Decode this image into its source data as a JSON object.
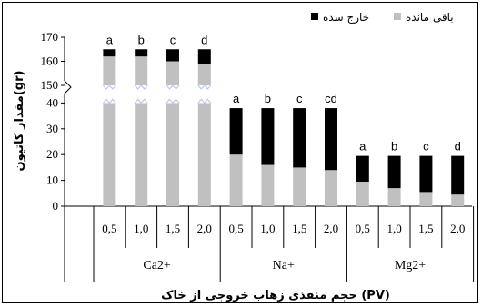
{
  "chart_data": {
    "type": "bar",
    "stacked": true,
    "broken_axis": {
      "break_from": 40,
      "break_to": 150
    },
    "groups": [
      "Ca2+",
      "Na+",
      "Mg2+"
    ],
    "categories": [
      "0,5",
      "1,0",
      "1,5",
      "2,0"
    ],
    "series": [
      {
        "name": "باقی مانده",
        "color": "#c0c0c0",
        "values": [
          [
            162,
            162,
            160,
            159
          ],
          [
            20,
            16,
            15,
            14
          ],
          [
            9.5,
            7,
            5.5,
            4.5
          ]
        ]
      },
      {
        "name": "خارج سده",
        "color": "#000000",
        "values": [
          [
            3,
            3,
            5,
            6
          ],
          [
            18,
            22,
            23,
            24
          ],
          [
            10,
            12.5,
            14,
            15
          ]
        ]
      }
    ],
    "letters": [
      [
        "a",
        "b",
        "c",
        "d"
      ],
      [
        "a",
        "b",
        "c",
        "cd"
      ],
      [
        "a",
        "b",
        "c",
        "d"
      ]
    ],
    "y_ticks_lower": [
      "0",
      "10",
      "20",
      "30",
      "40"
    ],
    "y_ticks_upper": [
      "150",
      "160",
      "170"
    ],
    "xlabel": "حجم منفذی زهاب خروجی از خاک (PV)",
    "ylabel": "مقدار کاتیون(gr)",
    "legend_position": "top-right",
    "grid": false
  }
}
